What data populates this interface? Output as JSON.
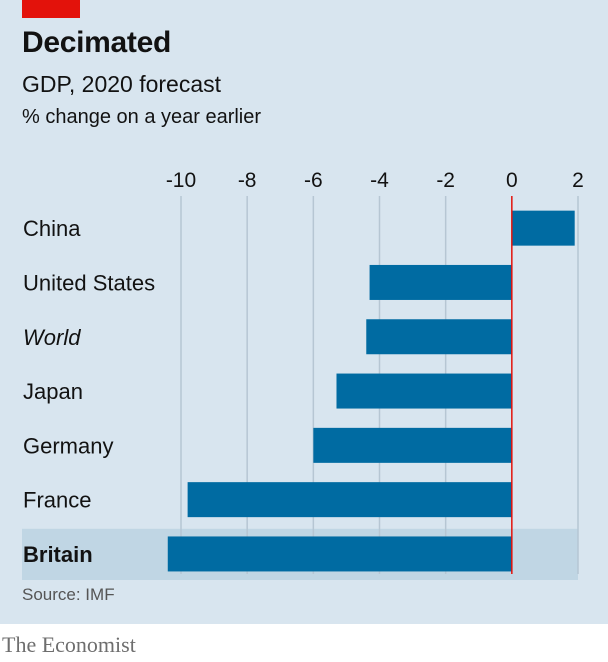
{
  "header": {
    "title": "Decimated",
    "subtitle": "GDP, 2020 forecast",
    "units": "% change on a year earlier"
  },
  "footer": {
    "source": "Source: IMF",
    "brand": "The Economist"
  },
  "colors": {
    "background": "#d8e5ef",
    "bar": "#006ba2",
    "highlight_band": "#c0d6e4",
    "zero_line": "#e3120b",
    "gridline": "#b6c6d3",
    "brand_tag": "#e3120b"
  },
  "chart_data": {
    "type": "bar",
    "orientation": "horizontal",
    "categories": [
      "China",
      "United States",
      "World",
      "Japan",
      "Germany",
      "France",
      "Britain"
    ],
    "values": [
      1.9,
      -4.3,
      -4.4,
      -5.3,
      -6.0,
      -9.8,
      -10.4
    ],
    "highlighted": "Britain",
    "italic": [
      "World"
    ],
    "xlim": [
      -10.5,
      2
    ],
    "xticks": [
      -10,
      -8,
      -6,
      -4,
      -2,
      0,
      2
    ],
    "xtick_labels": [
      "-10",
      "-8",
      "-6",
      "-4",
      "-2",
      "0",
      "2"
    ],
    "grid": true
  }
}
